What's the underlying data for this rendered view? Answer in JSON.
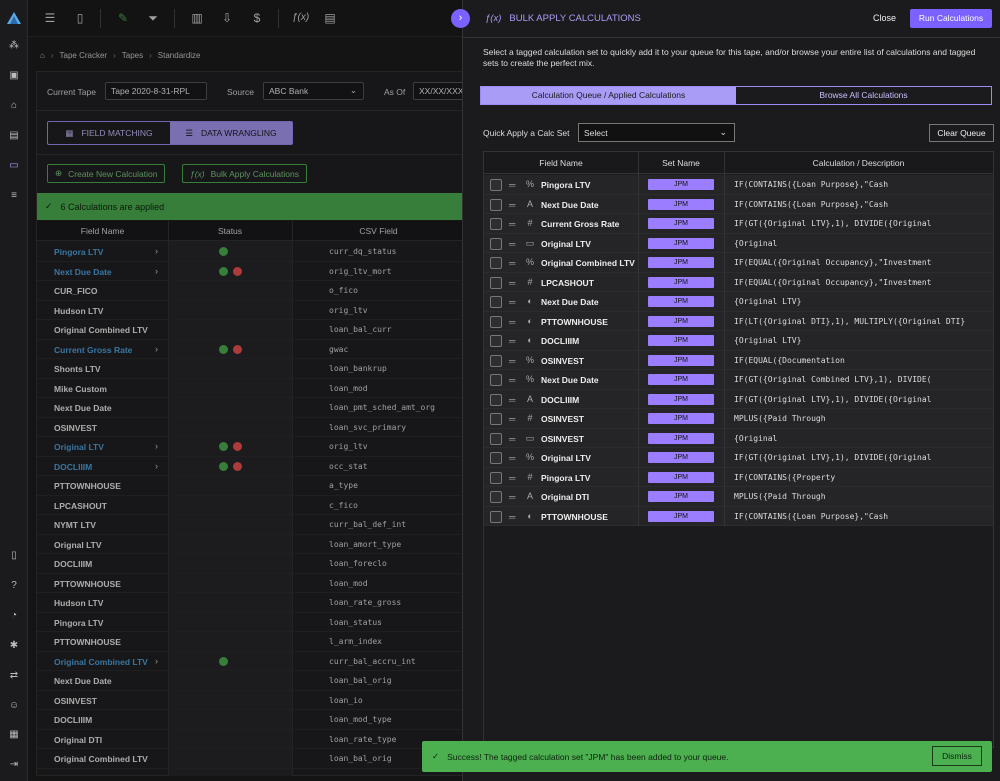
{
  "rail": {
    "icons": [
      "logo-icon",
      "network-icon",
      "briefcase-icon",
      "bank-icon",
      "chart-stack-icon",
      "wrangle-icon",
      "database-icon",
      "doc-icon",
      "help-icon",
      "bell-icon",
      "settings-icon",
      "transfer-icon",
      "user-icon",
      "table-icon",
      "logout-icon"
    ]
  },
  "breadcrumb": {
    "items": [
      "Tape Cracker",
      "Tapes",
      "Standardize"
    ]
  },
  "form": {
    "current_tape_label": "Current Tape",
    "current_tape_value": "Tape 2020-8-31-RPL",
    "source_label": "Source",
    "source_value": "ABC Bank",
    "as_of_label": "As Of",
    "as_of_value": "XX/XX/XXXX"
  },
  "toggle": {
    "field_matching": "FIELD MATCHING",
    "data_wrangling": "DATA WRANGLING"
  },
  "actions": {
    "create": "Create New Calculation",
    "bulk": "Bulk Apply Calculations"
  },
  "banner": {
    "text": "6 Calculations are applied"
  },
  "left_table": {
    "headers": [
      "Field Name",
      "Status",
      "CSV Field"
    ],
    "rows": [
      {
        "name": "Pingora LTV",
        "link": true,
        "chev": true,
        "status": [
          "g"
        ],
        "csv": "curr_dq_status"
      },
      {
        "name": "Next Due Date",
        "link": true,
        "chev": true,
        "status": [
          "g",
          "r"
        ],
        "csv": "orig_ltv_mort"
      },
      {
        "name": "CUR_FICO",
        "link": false,
        "chev": false,
        "status": [],
        "csv": "o_fico"
      },
      {
        "name": "Hudson LTV",
        "link": false,
        "chev": false,
        "status": [],
        "csv": "orig_ltv"
      },
      {
        "name": "Original Combined LTV",
        "link": false,
        "chev": false,
        "status": [],
        "csv": "loan_bal_curr"
      },
      {
        "name": "Current Gross Rate",
        "link": true,
        "chev": true,
        "status": [
          "g",
          "r"
        ],
        "csv": "gwac"
      },
      {
        "name": "Shonts LTV",
        "link": false,
        "chev": false,
        "status": [],
        "csv": "loan_bankrup"
      },
      {
        "name": "Mike Custom",
        "link": false,
        "chev": false,
        "status": [],
        "csv": "loan_mod"
      },
      {
        "name": "Next Due Date",
        "link": false,
        "chev": false,
        "status": [],
        "csv": "loan_pmt_sched_amt_org"
      },
      {
        "name": "OSINVEST",
        "link": false,
        "chev": false,
        "status": [],
        "csv": "loan_svc_primary"
      },
      {
        "name": "Original LTV",
        "link": true,
        "chev": true,
        "status": [
          "g",
          "r"
        ],
        "csv": "orig_ltv"
      },
      {
        "name": "DOCLIIIM",
        "link": true,
        "chev": true,
        "status": [
          "g",
          "r"
        ],
        "csv": "occ_stat"
      },
      {
        "name": "PTTOWNHOUSE",
        "link": false,
        "chev": false,
        "status": [],
        "csv": "a_type"
      },
      {
        "name": "LPCASHOUT",
        "link": false,
        "chev": false,
        "status": [],
        "csv": "c_fico"
      },
      {
        "name": "NYMT LTV",
        "link": false,
        "chev": false,
        "status": [],
        "csv": "curr_bal_def_int"
      },
      {
        "name": "Orignal LTV",
        "link": false,
        "chev": false,
        "status": [],
        "csv": "loan_amort_type"
      },
      {
        "name": "DOCLIIIM",
        "link": false,
        "chev": false,
        "status": [],
        "csv": "loan_foreclo"
      },
      {
        "name": "PTTOWNHOUSE",
        "link": false,
        "chev": false,
        "status": [],
        "csv": "loan_mod"
      },
      {
        "name": "Hudson LTV",
        "link": false,
        "chev": false,
        "status": [],
        "csv": "loan_rate_gross"
      },
      {
        "name": "Pingora LTV",
        "link": false,
        "chev": false,
        "status": [],
        "csv": "loan_status"
      },
      {
        "name": "PTTOWNHOUSE",
        "link": false,
        "chev": false,
        "status": [],
        "csv": "l_arm_index"
      },
      {
        "name": "Original Combined LTV",
        "link": true,
        "chev": true,
        "status": [
          "g"
        ],
        "csv": "curr_bal_accru_int"
      },
      {
        "name": "Next Due Date",
        "link": false,
        "chev": false,
        "status": [],
        "csv": "loan_bal_orig"
      },
      {
        "name": "OSINVEST",
        "link": false,
        "chev": false,
        "status": [],
        "csv": "loan_io"
      },
      {
        "name": "DOCLIIIM",
        "link": false,
        "chev": false,
        "status": [],
        "csv": "loan_mod_type"
      },
      {
        "name": "Original DTI",
        "link": false,
        "chev": false,
        "status": [],
        "csv": "loan_rate_type"
      },
      {
        "name": "Original Combined LTV",
        "link": false,
        "chev": false,
        "status": [],
        "csv": "loan_bal_orig"
      }
    ]
  },
  "drawer": {
    "title": "BULK APPLY CALCULATIONS",
    "close": "Close",
    "run": "Run Calculations",
    "description": "Select a tagged calculation set to quickly add it to your queue for this tape, and/or browse your entire list of calculations and tagged sets to create the perfect mix.",
    "tabs": [
      "Calculation Queue / Applied Calculations",
      "Browse All Calculations"
    ],
    "quick_label": "Quick Apply a Calc Set",
    "quick_value": "Select",
    "clear": "Clear Queue",
    "headers": [
      "Field Name",
      "Set Name",
      "Calculation / Description"
    ],
    "rows": [
      {
        "type": "%",
        "name": "Pingora LTV",
        "set": "JPM",
        "calc": "IF(CONTAINS({Loan Purpose},\"Cash"
      },
      {
        "type": "A",
        "name": "Next Due Date",
        "set": "JPM",
        "calc": "IF(CONTAINS({Loan Purpose},\"Cash"
      },
      {
        "type": "#",
        "name": "Current Gross Rate",
        "set": "JPM",
        "calc": "IF(GT({Original LTV},1), DIVIDE({Original"
      },
      {
        "type": "cal",
        "name": "Original LTV",
        "set": "JPM",
        "calc": "{Original"
      },
      {
        "type": "%",
        "name": "Original Combined LTV",
        "set": "JPM",
        "calc": "IF(EQUAL({Original Occupancy},\"Investment"
      },
      {
        "type": "#",
        "name": "LPCASHOUT",
        "set": "JPM",
        "calc": "IF(EQUAL({Original Occupancy},\"Investment"
      },
      {
        "type": "tog",
        "name": "Next Due Date",
        "set": "JPM",
        "calc": "{Original LTV}"
      },
      {
        "type": "tog",
        "name": "PTTOWNHOUSE",
        "set": "JPM",
        "calc": "IF(LT({Original DTI},1), MULTIPLY({Original DTI}"
      },
      {
        "type": "tog",
        "name": "DOCLIIIM",
        "set": "JPM",
        "calc": "{Original LTV}"
      },
      {
        "type": "%",
        "name": "OSINVEST",
        "set": "JPM",
        "calc": "IF(EQUAL({Documentation"
      },
      {
        "type": "%",
        "name": "Next Due Date",
        "set": "JPM",
        "calc": "IF(GT({Original Combined LTV},1), DIVIDE("
      },
      {
        "type": "A",
        "name": "DOCLIIIM",
        "set": "JPM",
        "calc": "IF(GT({Original LTV},1), DIVIDE({Original"
      },
      {
        "type": "#",
        "name": "OSINVEST",
        "set": "JPM",
        "calc": "MPLUS({Paid Through"
      },
      {
        "type": "cal",
        "name": "OSINVEST",
        "set": "JPM",
        "calc": "{Original"
      },
      {
        "type": "%",
        "name": "Original LTV",
        "set": "JPM",
        "calc": "IF(GT({Original LTV},1), DIVIDE({Original"
      },
      {
        "type": "#",
        "name": "Pingora LTV",
        "set": "JPM",
        "calc": "IF(CONTAINS({Property"
      },
      {
        "type": "A",
        "name": "Original DTI",
        "set": "JPM",
        "calc": "MPLUS({Paid Through"
      },
      {
        "type": "tog",
        "name": "PTTOWNHOUSE",
        "set": "JPM",
        "calc": "IF(CONTAINS({Loan Purpose},\"Cash"
      }
    ]
  },
  "toast": {
    "text": "Success! The tagged calculation set \"JPM\" has been added to your queue.",
    "dismiss": "Dismiss"
  },
  "colors": {
    "accent": "#7b61ff",
    "accent_light": "#a99cf6",
    "success": "#4caf50",
    "error": "#ef5350",
    "link": "#4fa3e0"
  }
}
